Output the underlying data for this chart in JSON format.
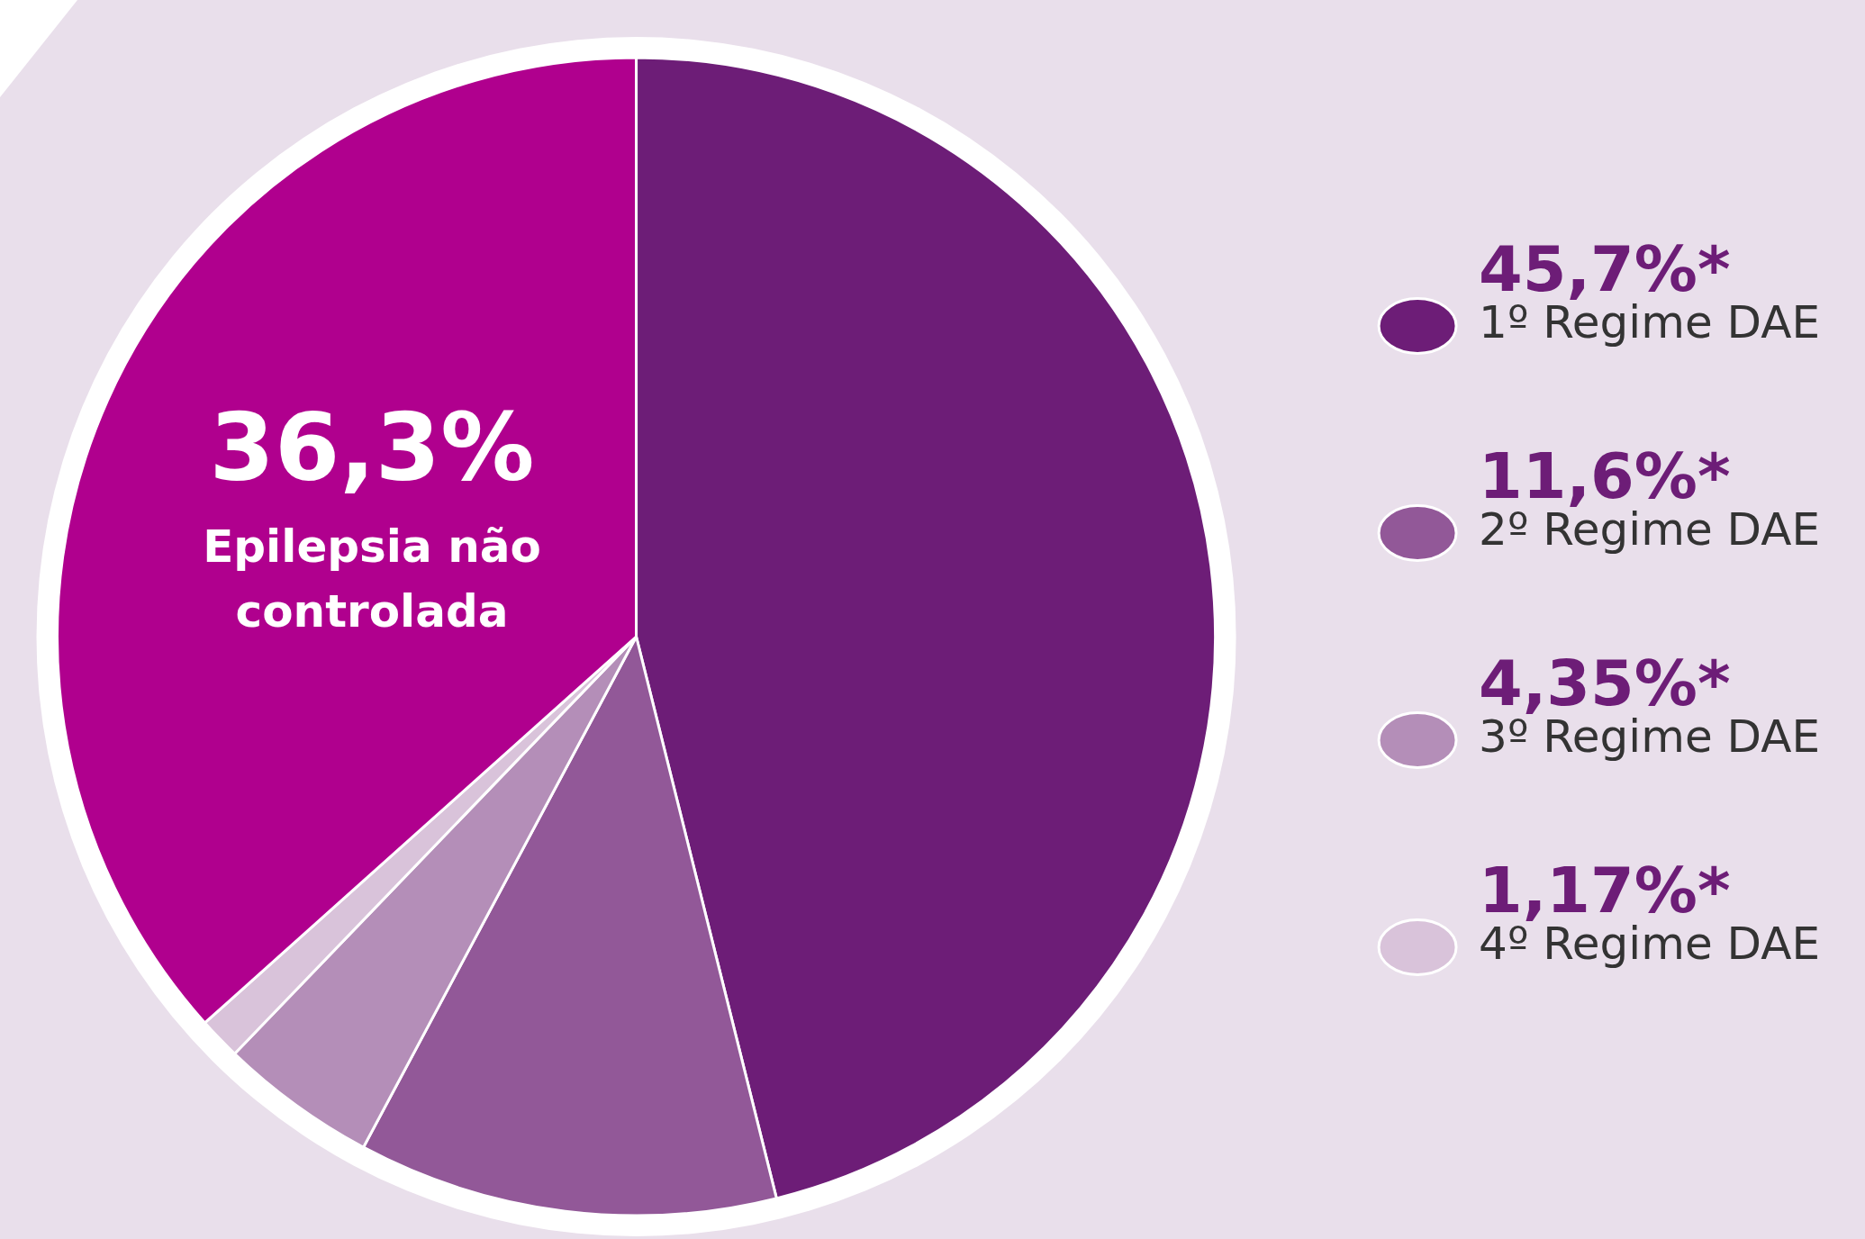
{
  "chart_data": {
    "type": "pie",
    "categories": [
      "1º Regime DAE",
      "2º Regime DAE",
      "3º Regime DAE",
      "4º Regime DAE",
      "Epilepsia não controlada"
    ],
    "values": [
      45.7,
      11.6,
      4.35,
      1.17,
      36.3
    ],
    "value_labels": [
      "45,7%*",
      "11,6%*",
      "4,35%*",
      "1,17%*",
      "36,3%"
    ],
    "colors": [
      "#6d1d77",
      "#925898",
      "#b48eb8",
      "#d9c3da",
      "#b0008e"
    ],
    "legend": "right"
  }
}
